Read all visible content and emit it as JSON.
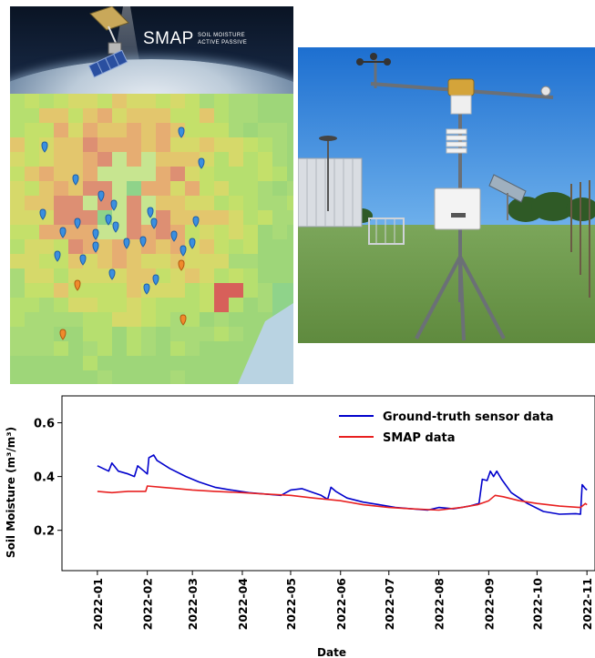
{
  "smap_banner": {
    "title": "SMAP",
    "subtitle_line1": "SOIL MOISTURE",
    "subtitle_line2": "ACTIVE PASSIVE"
  },
  "colors": {
    "ground_truth": "#0000cc",
    "smap": "#e82020",
    "sky": "#2f7fd6",
    "grass": "#78a54a"
  },
  "chart_data": {
    "type": "line",
    "title": "",
    "xlabel": "Date",
    "ylabel": "Soil Moisture (m³/m³)",
    "ylim": [
      0.05,
      0.7
    ],
    "yticks": [
      0.2,
      0.4,
      0.6
    ],
    "ytick_labels": [
      "0.2",
      "0.4",
      "0.6"
    ],
    "xlim": [
      "2021-12-10",
      "2022-11-06"
    ],
    "xticks": [
      "2022-01-01",
      "2022-02-01",
      "2022-03-01",
      "2022-04-01",
      "2022-05-01",
      "2022-06-01",
      "2022-07-01",
      "2022-08-01",
      "2022-09-01",
      "2022-10-01",
      "2022-11-01"
    ],
    "xtick_labels": [
      "2022-01",
      "2022-02",
      "2022-03",
      "2022-04",
      "2022-05",
      "2022-06",
      "2022-07",
      "2022-08",
      "2022-09",
      "2022-10",
      "2022-11"
    ],
    "grid": false,
    "legend_position": "top-right",
    "series": [
      {
        "name": "Ground-truth sensor data",
        "color": "#0000cc",
        "points": [
          [
            "2022-01-01",
            0.44
          ],
          [
            "2022-01-08",
            0.42
          ],
          [
            "2022-01-10",
            0.45
          ],
          [
            "2022-01-14",
            0.42
          ],
          [
            "2022-01-20",
            0.41
          ],
          [
            "2022-01-24",
            0.4
          ],
          [
            "2022-01-26",
            0.44
          ],
          [
            "2022-01-30",
            0.42
          ],
          [
            "2022-02-01",
            0.41
          ],
          [
            "2022-02-02",
            0.47
          ],
          [
            "2022-02-05",
            0.48
          ],
          [
            "2022-02-07",
            0.46
          ],
          [
            "2022-02-15",
            0.43
          ],
          [
            "2022-02-25",
            0.4
          ],
          [
            "2022-03-05",
            0.38
          ],
          [
            "2022-03-15",
            0.36
          ],
          [
            "2022-03-25",
            0.35
          ],
          [
            "2022-04-05",
            0.34
          ],
          [
            "2022-04-15",
            0.335
          ],
          [
            "2022-04-25",
            0.33
          ],
          [
            "2022-05-01",
            0.35
          ],
          [
            "2022-05-08",
            0.355
          ],
          [
            "2022-05-15",
            0.34
          ],
          [
            "2022-05-20",
            0.33
          ],
          [
            "2022-05-24",
            0.315
          ],
          [
            "2022-05-26",
            0.36
          ],
          [
            "2022-05-29",
            0.345
          ],
          [
            "2022-06-05",
            0.32
          ],
          [
            "2022-06-15",
            0.305
          ],
          [
            "2022-06-25",
            0.295
          ],
          [
            "2022-07-05",
            0.285
          ],
          [
            "2022-07-15",
            0.28
          ],
          [
            "2022-07-25",
            0.275
          ],
          [
            "2022-08-01",
            0.285
          ],
          [
            "2022-08-10",
            0.28
          ],
          [
            "2022-08-20",
            0.29
          ],
          [
            "2022-08-26",
            0.3
          ],
          [
            "2022-08-28",
            0.39
          ],
          [
            "2022-08-31",
            0.385
          ],
          [
            "2022-09-02",
            0.42
          ],
          [
            "2022-09-04",
            0.4
          ],
          [
            "2022-09-06",
            0.42
          ],
          [
            "2022-09-09",
            0.39
          ],
          [
            "2022-09-15",
            0.34
          ],
          [
            "2022-09-25",
            0.3
          ],
          [
            "2022-10-05",
            0.27
          ],
          [
            "2022-10-15",
            0.26
          ],
          [
            "2022-10-25",
            0.262
          ],
          [
            "2022-10-28",
            0.26
          ],
          [
            "2022-10-29",
            0.37
          ],
          [
            "2022-10-31",
            0.355
          ],
          [
            "2022-11-01",
            0.35
          ]
        ]
      },
      {
        "name": "SMAP data",
        "color": "#e82020",
        "points": [
          [
            "2022-01-01",
            0.345
          ],
          [
            "2022-01-10",
            0.34
          ],
          [
            "2022-01-20",
            0.345
          ],
          [
            "2022-01-31",
            0.345
          ],
          [
            "2022-02-01",
            0.365
          ],
          [
            "2022-02-10",
            0.36
          ],
          [
            "2022-02-20",
            0.355
          ],
          [
            "2022-03-01",
            0.35
          ],
          [
            "2022-03-15",
            0.345
          ],
          [
            "2022-04-01",
            0.34
          ],
          [
            "2022-04-15",
            0.335
          ],
          [
            "2022-05-01",
            0.33
          ],
          [
            "2022-05-15",
            0.32
          ],
          [
            "2022-06-01",
            0.31
          ],
          [
            "2022-06-15",
            0.295
          ],
          [
            "2022-07-01",
            0.285
          ],
          [
            "2022-07-15",
            0.28
          ],
          [
            "2022-08-01",
            0.275
          ],
          [
            "2022-08-15",
            0.285
          ],
          [
            "2022-08-25",
            0.295
          ],
          [
            "2022-09-01",
            0.31
          ],
          [
            "2022-09-05",
            0.33
          ],
          [
            "2022-09-10",
            0.325
          ],
          [
            "2022-09-20",
            0.31
          ],
          [
            "2022-10-01",
            0.3
          ],
          [
            "2022-10-15",
            0.29
          ],
          [
            "2022-10-28",
            0.285
          ],
          [
            "2022-10-31",
            0.3
          ],
          [
            "2022-11-01",
            0.295
          ]
        ]
      }
    ]
  }
}
